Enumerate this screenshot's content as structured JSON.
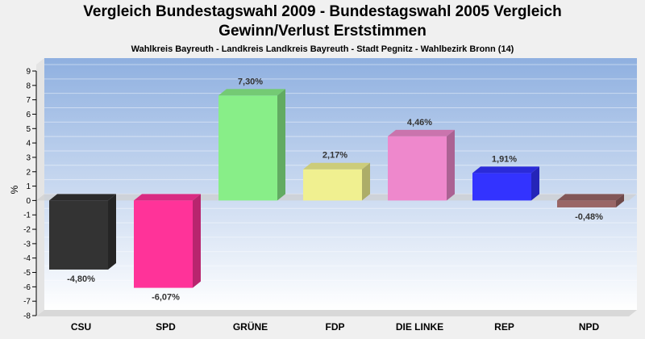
{
  "chart_data": {
    "type": "bar",
    "title": "Vergleich Bundestagswahl 2009 - Bundestagswahl 2005 Vergleich",
    "title_line2": "Gewinn/Verlust Erststimmen",
    "subtitle": "Wahlkreis Bayreuth - Landkreis Landkreis Bayreuth - Stadt Pegnitz - Wahlbezirk Bronn (14)",
    "ylabel": "%",
    "xlabel": "",
    "ylim": [
      -8,
      9
    ],
    "yticks": [
      9,
      8,
      7,
      6,
      5,
      4,
      3,
      2,
      1,
      0,
      -1,
      -2,
      -3,
      -4,
      -5,
      -6,
      -7,
      -8
    ],
    "grid": true,
    "categories": [
      "CSU",
      "SPD",
      "GRÜNE",
      "FDP",
      "DIE LINKE",
      "REP",
      "NPD"
    ],
    "values": [
      -4.8,
      -6.07,
      7.3,
      2.17,
      4.46,
      1.91,
      -0.48
    ],
    "value_labels": [
      "-4,80%",
      "-6,07%",
      "7,30%",
      "2,17%",
      "4,46%",
      "1,91%",
      "-0,48%"
    ],
    "colors": [
      "#333333",
      "#ff3399",
      "#88ee88",
      "#f0f090",
      "#ee88cc",
      "#3333ff",
      "#996666"
    ]
  }
}
